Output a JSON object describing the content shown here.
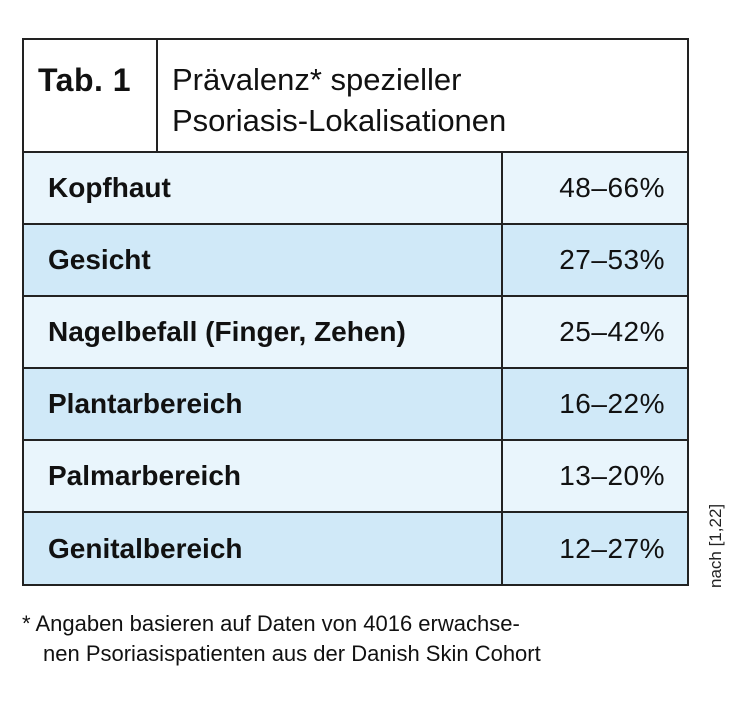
{
  "table": {
    "tab_label": "Tab. 1",
    "title_line1": "Prävalenz* spezieller",
    "title_line2": "Psoriasis-Lokalisationen",
    "rows": [
      {
        "label": "Kopfhaut",
        "value": "48–66%"
      },
      {
        "label": "Gesicht",
        "value": "27–53%"
      },
      {
        "label": "Nagelbefall (Finger, Zehen)",
        "value": "25–42%"
      },
      {
        "label": "Plantarbereich",
        "value": "16–22%"
      },
      {
        "label": "Palmarbereich",
        "value": "13–20%"
      },
      {
        "label": "Genitalbereich",
        "value": "12–27%"
      }
    ]
  },
  "source_note": "nach [1,22]",
  "footnote": {
    "line1": "* Angaben basieren auf Daten von 4016 erwachse-",
    "line2": "nen Psoriasispatienten aus der Danish Skin Cohort"
  },
  "colors": {
    "row_light": "#e9f5fc",
    "row_dark": "#d0e9f8",
    "border": "#222222"
  }
}
